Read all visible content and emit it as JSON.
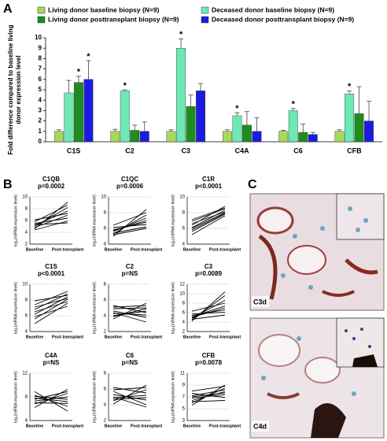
{
  "panels": [
    "A",
    "B",
    "C"
  ],
  "images": [
    {
      "label": "C3d"
    },
    {
      "label": "C4d"
    }
  ],
  "chart_data": [
    {
      "type": "bar",
      "ylabel": [
        "Fold difference compared to baseline living",
        "donor expression level"
      ],
      "categories": [
        "C1S",
        "C2",
        "C3",
        "C4A",
        "C6",
        "CFB"
      ],
      "ylim": [
        0,
        10
      ],
      "yticks": [
        0,
        1,
        2,
        3,
        4,
        5,
        6,
        7,
        8,
        9,
        10
      ],
      "series": [
        {
          "name": "Living donor baseline biopsy (N=9)",
          "color": "#a6d85a",
          "values": [
            1.0,
            1.0,
            1.0,
            1.0,
            1.0,
            1.0
          ],
          "errors": [
            0.15,
            0.2,
            0.15,
            0.15,
            0.1,
            0.15
          ],
          "annotations": [
            null,
            null,
            null,
            null,
            null,
            null
          ]
        },
        {
          "name": "Deceased donor baseline biopsy (N=9)",
          "color": "#6ee8b4",
          "values": [
            4.7,
            4.9,
            9.0,
            2.5,
            3.0,
            4.6
          ],
          "errors": [
            1.2,
            0.1,
            0.9,
            0.3,
            0.2,
            0.3
          ],
          "annotations": [
            null,
            "*",
            "*",
            "*",
            "*",
            "*"
          ]
        },
        {
          "name": "Living donor posttransplant biopsy (N=9)",
          "color": "#1e8c1e",
          "values": [
            5.7,
            1.1,
            3.4,
            1.6,
            0.9,
            2.7
          ],
          "errors": [
            0.6,
            0.5,
            1.1,
            1.3,
            0.8,
            2.6
          ],
          "annotations": [
            "*",
            null,
            null,
            null,
            null,
            null
          ]
        },
        {
          "name": "Deceased donor posttransplant biopsy (N=9)",
          "color": "#1c1ce0",
          "values": [
            6.0,
            1.0,
            4.9,
            1.0,
            0.7,
            2.0
          ],
          "errors": [
            1.8,
            0.9,
            0.7,
            1.3,
            0.2,
            1.9
          ],
          "annotations": [
            "*",
            null,
            null,
            null,
            null,
            null
          ]
        }
      ]
    },
    {
      "type": "line",
      "title": "C1QB",
      "subtitle": "p=0.0002",
      "ylabel": "log₂(mRNA expression level)",
      "categories": [
        "Baseline",
        "Post-transplant"
      ],
      "ylim": [
        2,
        10
      ],
      "yticks": [
        2,
        4,
        6,
        8,
        10
      ],
      "grid": true,
      "color": "#000000",
      "series": [
        {
          "values": [
            4.6,
            9.1
          ]
        },
        {
          "values": [
            5.0,
            8.2
          ]
        },
        {
          "values": [
            5.2,
            7.6
          ]
        },
        {
          "values": [
            4.8,
            6.9
          ]
        },
        {
          "values": [
            5.5,
            6.4
          ]
        },
        {
          "values": [
            6.1,
            7.2
          ]
        },
        {
          "values": [
            4.4,
            5.9
          ]
        },
        {
          "values": [
            5.8,
            8.6
          ]
        },
        {
          "values": [
            5.3,
            5.6
          ]
        }
      ]
    },
    {
      "type": "line",
      "title": "C1QC",
      "subtitle": "p=0.0006",
      "ylabel": "log₂(mRNA expression level)",
      "categories": [
        "Baseline",
        "Post-transplant"
      ],
      "ylim": [
        4,
        10
      ],
      "yticks": [
        4,
        6,
        8,
        10
      ],
      "grid": true,
      "color": "#000000",
      "series": [
        {
          "values": [
            5.0,
            8.4
          ]
        },
        {
          "values": [
            5.3,
            7.7
          ]
        },
        {
          "values": [
            5.6,
            7.3
          ]
        },
        {
          "values": [
            5.8,
            6.8
          ]
        },
        {
          "values": [
            6.1,
            6.5
          ]
        },
        {
          "values": [
            5.4,
            6.2
          ]
        },
        {
          "values": [
            6.4,
            8.0
          ]
        },
        {
          "values": [
            5.2,
            6.0
          ]
        },
        {
          "values": [
            5.7,
            7.0
          ]
        }
      ]
    },
    {
      "type": "line",
      "title": "C1R",
      "subtitle": "p<0.0001",
      "ylabel": "log₂(mRNA expression level)",
      "categories": [
        "Baseline",
        "Post-transplant"
      ],
      "ylim": [
        4,
        10
      ],
      "yticks": [
        4,
        6,
        8,
        10
      ],
      "grid": true,
      "color": "#000000",
      "series": [
        {
          "values": [
            5.2,
            7.6
          ]
        },
        {
          "values": [
            5.8,
            7.9
          ]
        },
        {
          "values": [
            6.1,
            8.3
          ]
        },
        {
          "values": [
            6.4,
            8.8
          ]
        },
        {
          "values": [
            6.9,
            8.5
          ]
        },
        {
          "values": [
            5.6,
            7.8
          ]
        },
        {
          "values": [
            6.6,
            8.1
          ]
        },
        {
          "values": [
            7.1,
            8.6
          ]
        },
        {
          "values": [
            6.0,
            8.0
          ]
        }
      ]
    },
    {
      "type": "line",
      "title": "C1S",
      "subtitle": "p<0.0001",
      "ylabel": "log₂(mRNA expression level)",
      "categories": [
        "Baseline",
        "Post-transplant"
      ],
      "ylim": [
        4,
        10
      ],
      "yticks": [
        4,
        6,
        8,
        10
      ],
      "grid": true,
      "color": "#000000",
      "series": [
        {
          "values": [
            5.0,
            7.6
          ]
        },
        {
          "values": [
            5.6,
            8.1
          ]
        },
        {
          "values": [
            6.2,
            8.4
          ]
        },
        {
          "values": [
            6.8,
            8.8
          ]
        },
        {
          "values": [
            7.4,
            9.1
          ]
        },
        {
          "values": [
            7.9,
            8.6
          ]
        },
        {
          "values": [
            6.5,
            7.8
          ]
        },
        {
          "values": [
            5.9,
            7.2
          ]
        },
        {
          "values": [
            7.1,
            8.2
          ]
        }
      ]
    },
    {
      "type": "line",
      "title": "C2",
      "subtitle": "p=NS",
      "ylabel": "log₂(mRNA expression level)",
      "categories": [
        "Baseline",
        "Post-transplant"
      ],
      "ylim": [
        2,
        8
      ],
      "yticks": [
        2,
        4,
        6,
        8
      ],
      "grid": true,
      "color": "#000000",
      "series": [
        {
          "values": [
            3.6,
            5.6
          ]
        },
        {
          "values": [
            4.0,
            4.6
          ]
        },
        {
          "values": [
            4.3,
            4.1
          ]
        },
        {
          "values": [
            4.6,
            3.8
          ]
        },
        {
          "values": [
            4.9,
            5.0
          ]
        },
        {
          "values": [
            5.3,
            4.4
          ]
        },
        {
          "values": [
            4.4,
            3.2
          ]
        },
        {
          "values": [
            3.9,
            4.9
          ]
        },
        {
          "values": [
            5.1,
            5.3
          ]
        }
      ]
    },
    {
      "type": "line",
      "title": "C3",
      "subtitle": "p=0.0089",
      "ylabel": "log₂(mRNA expression level)",
      "categories": [
        "Baseline",
        "Post-transplant"
      ],
      "ylim": [
        2,
        12
      ],
      "yticks": [
        2,
        4,
        6,
        8,
        10,
        12
      ],
      "grid": true,
      "color": "#000000",
      "series": [
        {
          "values": [
            4.2,
            10.4
          ]
        },
        {
          "values": [
            4.5,
            9.6
          ]
        },
        {
          "values": [
            4.8,
            8.6
          ]
        },
        {
          "values": [
            5.1,
            7.4
          ]
        },
        {
          "values": [
            5.4,
            6.6
          ]
        },
        {
          "values": [
            5.7,
            6.1
          ]
        },
        {
          "values": [
            4.6,
            5.5
          ]
        },
        {
          "values": [
            6.3,
            8.0
          ]
        },
        {
          "values": [
            5.0,
            7.0
          ]
        }
      ]
    },
    {
      "type": "line",
      "title": "C4A",
      "subtitle": "p=NS",
      "ylabel": "log₂(mRNA expression level)",
      "categories": [
        "Baseline",
        "Post-transplant"
      ],
      "ylim": [
        4,
        12
      ],
      "yticks": [
        4,
        8,
        12
      ],
      "grid": true,
      "color": "#000000",
      "series": [
        {
          "values": [
            6.2,
            9.3
          ]
        },
        {
          "values": [
            6.8,
            8.6
          ]
        },
        {
          "values": [
            7.3,
            8.0
          ]
        },
        {
          "values": [
            7.8,
            7.2
          ]
        },
        {
          "values": [
            8.3,
            6.4
          ]
        },
        {
          "values": [
            8.9,
            5.6
          ]
        },
        {
          "values": [
            7.0,
            6.9
          ]
        },
        {
          "values": [
            7.6,
            8.9
          ]
        },
        {
          "values": [
            8.1,
            7.6
          ]
        }
      ]
    },
    {
      "type": "line",
      "title": "C6",
      "subtitle": "p=NS",
      "ylabel": "log₂(mRNA expression level)",
      "categories": [
        "Baseline",
        "Post-transplant"
      ],
      "ylim": [
        2,
        8
      ],
      "yticks": [
        2,
        4,
        6,
        8
      ],
      "grid": true,
      "color": "#000000",
      "series": [
        {
          "values": [
            4.1,
            6.5
          ]
        },
        {
          "values": [
            4.5,
            5.9
          ]
        },
        {
          "values": [
            4.9,
            5.2
          ]
        },
        {
          "values": [
            5.3,
            4.6
          ]
        },
        {
          "values": [
            5.7,
            4.0
          ]
        },
        {
          "values": [
            6.2,
            5.5
          ]
        },
        {
          "values": [
            5.0,
            3.7
          ]
        },
        {
          "values": [
            4.7,
            4.9
          ]
        },
        {
          "values": [
            5.9,
            6.2
          ]
        }
      ]
    },
    {
      "type": "line",
      "title": "CFB",
      "subtitle": "p=0.0078",
      "ylabel": "log₂(mRNA expression level)",
      "categories": [
        "Baseline",
        "Post-transplant"
      ],
      "ylim": [
        3,
        11
      ],
      "yticks": [
        3,
        5,
        7,
        9,
        11
      ],
      "grid": true,
      "color": "#000000",
      "series": [
        {
          "values": [
            5.6,
            9.0
          ]
        },
        {
          "values": [
            6.0,
            8.5
          ]
        },
        {
          "values": [
            6.4,
            7.9
          ]
        },
        {
          "values": [
            6.8,
            7.4
          ]
        },
        {
          "values": [
            7.2,
            8.2
          ]
        },
        {
          "values": [
            7.6,
            6.9
          ]
        },
        {
          "values": [
            8.0,
            8.8
          ]
        },
        {
          "values": [
            6.2,
            6.4
          ]
        },
        {
          "values": [
            7.0,
            7.7
          ]
        }
      ]
    }
  ]
}
